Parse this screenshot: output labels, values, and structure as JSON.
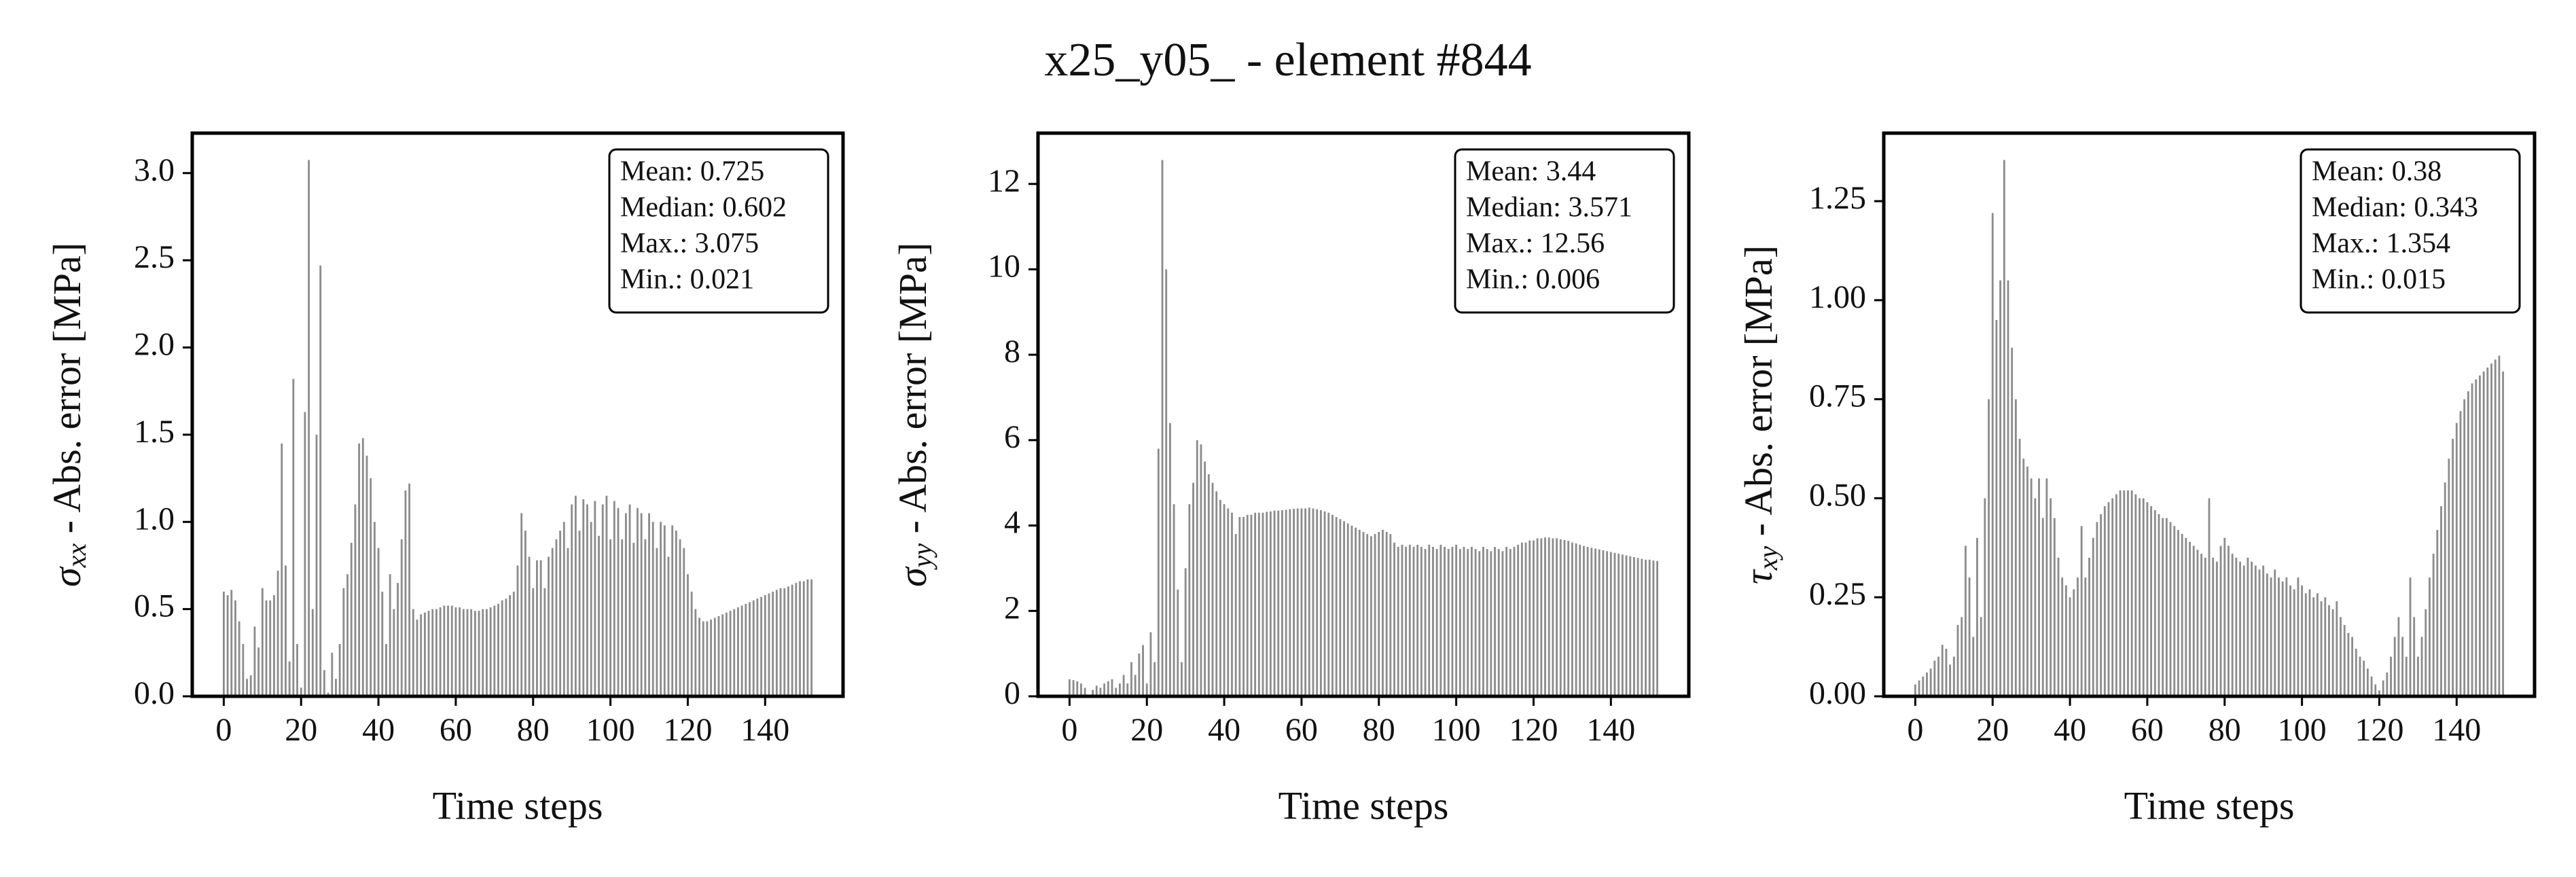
{
  "title": "x25_y05_ - element #844",
  "chart_data": [
    {
      "type": "bar",
      "ylabel_symbol": "σ",
      "ylabel_subscript": "xx",
      "ylabel": " - Abs. error [MPa]",
      "xlabel": "Time steps",
      "stats": [
        "Mean: 0.725",
        "Median: 0.602",
        "Max.: 3.075",
        "Min.: 0.021"
      ],
      "color": "#8c8c8c",
      "xlim": [
        -8.15,
        160.15
      ],
      "xticks": [
        0,
        20,
        40,
        60,
        80,
        100,
        120,
        140
      ],
      "ylim": [
        0,
        3.229
      ],
      "yticks": [
        {
          "value": 0,
          "label": "0.0"
        },
        0.5,
        {
          "value": 1,
          "label": "1.0"
        },
        1.5,
        {
          "value": 2,
          "label": "2.0"
        },
        2.5,
        {
          "value": 3,
          "label": "3.0"
        }
      ],
      "x": [
        0,
        1,
        2,
        3,
        4,
        5,
        6,
        7,
        8,
        9,
        10,
        11,
        12,
        13,
        14,
        15,
        16,
        17,
        18,
        19,
        20,
        21,
        22,
        23,
        24,
        25,
        26,
        27,
        28,
        29,
        30,
        31,
        32,
        33,
        34,
        35,
        36,
        37,
        38,
        39,
        40,
        41,
        42,
        43,
        44,
        45,
        46,
        47,
        48,
        49,
        50,
        51,
        52,
        53,
        54,
        55,
        56,
        57,
        58,
        59,
        60,
        61,
        62,
        63,
        64,
        65,
        66,
        67,
        68,
        69,
        70,
        71,
        72,
        73,
        74,
        75,
        76,
        77,
        78,
        79,
        80,
        81,
        82,
        83,
        84,
        85,
        86,
        87,
        88,
        89,
        90,
        91,
        92,
        93,
        94,
        95,
        96,
        97,
        98,
        99,
        100,
        101,
        102,
        103,
        104,
        105,
        106,
        107,
        108,
        109,
        110,
        111,
        112,
        113,
        114,
        115,
        116,
        117,
        118,
        119,
        120,
        121,
        122,
        123,
        124,
        125,
        126,
        127,
        128,
        129,
        130,
        131,
        132,
        133,
        134,
        135,
        136,
        137,
        138,
        139,
        140,
        141,
        142,
        143,
        144,
        145,
        146,
        147,
        148,
        149,
        150,
        151,
        152
      ],
      "values": [
        0.6,
        0.58,
        0.61,
        0.55,
        0.43,
        0.3,
        0.1,
        0.12,
        0.4,
        0.28,
        0.62,
        0.55,
        0.55,
        0.58,
        0.72,
        1.45,
        0.75,
        0.2,
        1.82,
        0.3,
        0.05,
        1.63,
        3.075,
        0.5,
        1.5,
        2.47,
        0.15,
        0.021,
        0.25,
        0.1,
        0.3,
        0.62,
        0.7,
        0.88,
        1.1,
        1.45,
        1.48,
        1.38,
        1.25,
        1.0,
        0.85,
        0.6,
        0.3,
        0.7,
        0.5,
        0.65,
        0.9,
        1.18,
        1.22,
        0.5,
        0.44,
        0.47,
        0.48,
        0.49,
        0.5,
        0.5,
        0.51,
        0.52,
        0.52,
        0.52,
        0.51,
        0.51,
        0.5,
        0.5,
        0.5,
        0.49,
        0.49,
        0.5,
        0.5,
        0.51,
        0.52,
        0.53,
        0.55,
        0.56,
        0.58,
        0.6,
        0.75,
        1.05,
        0.95,
        0.8,
        0.62,
        0.78,
        0.78,
        0.62,
        0.8,
        0.85,
        0.9,
        0.95,
        1.0,
        0.85,
        1.1,
        1.15,
        0.95,
        1.13,
        1.1,
        1.0,
        1.12,
        0.92,
        1.1,
        1.15,
        0.9,
        1.12,
        1.08,
        0.9,
        1.05,
        1.1,
        0.88,
        1.08,
        1.05,
        0.9,
        1.05,
        1.0,
        0.85,
        1.0,
        0.98,
        0.8,
        0.98,
        0.95,
        0.9,
        0.85,
        0.7,
        0.6,
        0.5,
        0.45,
        0.43,
        0.43,
        0.44,
        0.45,
        0.46,
        0.47,
        0.48,
        0.49,
        0.5,
        0.51,
        0.52,
        0.53,
        0.54,
        0.55,
        0.56,
        0.57,
        0.58,
        0.59,
        0.6,
        0.61,
        0.62,
        0.62,
        0.63,
        0.64,
        0.65,
        0.66,
        0.66,
        0.67,
        0.67
      ]
    },
    {
      "type": "bar",
      "ylabel_symbol": "σ",
      "ylabel_subscript": "yy",
      "ylabel": " - Abs. error [MPa]",
      "xlabel": "Time steps",
      "stats": [
        "Mean: 3.44",
        "Median: 3.571",
        "Max.: 12.56",
        "Min.: 0.006"
      ],
      "color": "#8c8c8c",
      "xlim": [
        -8.15,
        160.15
      ],
      "xticks": [
        0,
        20,
        40,
        60,
        80,
        100,
        120,
        140
      ],
      "ylim": [
        0,
        13.19
      ],
      "yticks": [
        0,
        2,
        4,
        6,
        8,
        10,
        12
      ],
      "x": [
        0,
        1,
        2,
        3,
        4,
        5,
        6,
        7,
        8,
        9,
        10,
        11,
        12,
        13,
        14,
        15,
        16,
        17,
        18,
        19,
        20,
        21,
        22,
        23,
        24,
        25,
        26,
        27,
        28,
        29,
        30,
        31,
        32,
        33,
        34,
        35,
        36,
        37,
        38,
        39,
        40,
        41,
        42,
        43,
        44,
        45,
        46,
        47,
        48,
        49,
        50,
        51,
        52,
        53,
        54,
        55,
        56,
        57,
        58,
        59,
        60,
        61,
        62,
        63,
        64,
        65,
        66,
        67,
        68,
        69,
        70,
        71,
        72,
        73,
        74,
        75,
        76,
        77,
        78,
        79,
        80,
        81,
        82,
        83,
        84,
        85,
        86,
        87,
        88,
        89,
        90,
        91,
        92,
        93,
        94,
        95,
        96,
        97,
        98,
        99,
        100,
        101,
        102,
        103,
        104,
        105,
        106,
        107,
        108,
        109,
        110,
        111,
        112,
        113,
        114,
        115,
        116,
        117,
        118,
        119,
        120,
        121,
        122,
        123,
        124,
        125,
        126,
        127,
        128,
        129,
        130,
        131,
        132,
        133,
        134,
        135,
        136,
        137,
        138,
        139,
        140,
        141,
        142,
        143,
        144,
        145,
        146,
        147,
        148,
        149,
        150,
        151,
        152
      ],
      "values": [
        0.4,
        0.38,
        0.35,
        0.3,
        0.2,
        0.006,
        0.15,
        0.25,
        0.2,
        0.3,
        0.35,
        0.4,
        0.2,
        0.3,
        0.5,
        0.3,
        0.8,
        0.5,
        1.0,
        1.2,
        0.3,
        1.5,
        0.8,
        5.8,
        12.56,
        10.0,
        6.4,
        4.5,
        2.5,
        0.8,
        3.0,
        4.5,
        5.0,
        6.0,
        5.9,
        5.5,
        5.2,
        5.0,
        4.8,
        4.6,
        4.5,
        4.4,
        4.3,
        3.8,
        4.2,
        4.2,
        4.25,
        4.25,
        4.3,
        4.3,
        4.3,
        4.32,
        4.33,
        4.35,
        4.35,
        4.36,
        4.37,
        4.38,
        4.39,
        4.4,
        4.4,
        4.4,
        4.42,
        4.4,
        4.38,
        4.36,
        4.33,
        4.3,
        4.25,
        4.2,
        4.15,
        4.1,
        4.05,
        4.0,
        3.95,
        3.9,
        3.85,
        3.8,
        3.75,
        3.8,
        3.85,
        3.9,
        3.85,
        3.8,
        3.6,
        3.5,
        3.55,
        3.5,
        3.55,
        3.5,
        3.55,
        3.5,
        3.45,
        3.55,
        3.5,
        3.45,
        3.55,
        3.5,
        3.45,
        3.5,
        3.55,
        3.45,
        3.5,
        3.45,
        3.5,
        3.45,
        3.4,
        3.5,
        3.45,
        3.4,
        3.5,
        3.45,
        3.4,
        3.5,
        3.45,
        3.5,
        3.55,
        3.6,
        3.6,
        3.65,
        3.65,
        3.7,
        3.7,
        3.72,
        3.72,
        3.7,
        3.7,
        3.68,
        3.66,
        3.64,
        3.6,
        3.58,
        3.55,
        3.52,
        3.5,
        3.48,
        3.46,
        3.44,
        3.42,
        3.4,
        3.38,
        3.36,
        3.34,
        3.32,
        3.3,
        3.28,
        3.26,
        3.24,
        3.22,
        3.2,
        3.2,
        3.18,
        3.17
      ]
    },
    {
      "type": "bar",
      "ylabel_symbol": "τ",
      "ylabel_subscript": "xy",
      "ylabel": " - Abs. error [MPa]",
      "xlabel": "Time steps",
      "stats": [
        "Mean: 0.38",
        "Median: 0.343",
        "Max.: 1.354",
        "Min.: 0.015"
      ],
      "color": "#8c8c8c",
      "xlim": [
        -8.15,
        160.15
      ],
      "xticks": [
        0,
        20,
        40,
        60,
        80,
        100,
        120,
        140
      ],
      "ylim": [
        0,
        1.4217
      ],
      "yticks": [
        {
          "value": 0,
          "label": "0.00"
        },
        0.25,
        {
          "value": 0.5,
          "label": "0.50"
        },
        0.75,
        {
          "value": 1,
          "label": "1.00"
        },
        1.25
      ],
      "x": [
        0,
        1,
        2,
        3,
        4,
        5,
        6,
        7,
        8,
        9,
        10,
        11,
        12,
        13,
        14,
        15,
        16,
        17,
        18,
        19,
        20,
        21,
        22,
        23,
        24,
        25,
        26,
        27,
        28,
        29,
        30,
        31,
        32,
        33,
        34,
        35,
        36,
        37,
        38,
        39,
        40,
        41,
        42,
        43,
        44,
        45,
        46,
        47,
        48,
        49,
        50,
        51,
        52,
        53,
        54,
        55,
        56,
        57,
        58,
        59,
        60,
        61,
        62,
        63,
        64,
        65,
        66,
        67,
        68,
        69,
        70,
        71,
        72,
        73,
        74,
        75,
        76,
        77,
        78,
        79,
        80,
        81,
        82,
        83,
        84,
        85,
        86,
        87,
        88,
        89,
        90,
        91,
        92,
        93,
        94,
        95,
        96,
        97,
        98,
        99,
        100,
        101,
        102,
        103,
        104,
        105,
        106,
        107,
        108,
        109,
        110,
        111,
        112,
        113,
        114,
        115,
        116,
        117,
        118,
        119,
        120,
        121,
        122,
        123,
        124,
        125,
        126,
        127,
        128,
        129,
        130,
        131,
        132,
        133,
        134,
        135,
        136,
        137,
        138,
        139,
        140,
        141,
        142,
        143,
        144,
        145,
        146,
        147,
        148,
        149,
        150,
        151,
        152
      ],
      "values": [
        0.03,
        0.04,
        0.05,
        0.06,
        0.07,
        0.09,
        0.1,
        0.13,
        0.12,
        0.08,
        0.1,
        0.18,
        0.2,
        0.38,
        0.3,
        0.15,
        0.4,
        0.2,
        0.5,
        0.75,
        1.22,
        0.95,
        1.05,
        1.354,
        1.05,
        0.88,
        0.75,
        0.65,
        0.6,
        0.58,
        0.55,
        0.5,
        0.55,
        0.45,
        0.55,
        0.5,
        0.45,
        0.35,
        0.3,
        0.28,
        0.25,
        0.27,
        0.3,
        0.43,
        0.3,
        0.35,
        0.4,
        0.44,
        0.46,
        0.48,
        0.49,
        0.5,
        0.51,
        0.52,
        0.52,
        0.52,
        0.52,
        0.51,
        0.5,
        0.5,
        0.49,
        0.48,
        0.47,
        0.46,
        0.45,
        0.45,
        0.44,
        0.43,
        0.42,
        0.41,
        0.4,
        0.39,
        0.38,
        0.37,
        0.36,
        0.35,
        0.5,
        0.35,
        0.34,
        0.38,
        0.4,
        0.38,
        0.36,
        0.35,
        0.34,
        0.33,
        0.35,
        0.34,
        0.33,
        0.32,
        0.33,
        0.31,
        0.3,
        0.32,
        0.3,
        0.29,
        0.3,
        0.28,
        0.27,
        0.3,
        0.28,
        0.26,
        0.27,
        0.25,
        0.26,
        0.24,
        0.25,
        0.23,
        0.22,
        0.24,
        0.2,
        0.18,
        0.16,
        0.15,
        0.12,
        0.1,
        0.09,
        0.07,
        0.05,
        0.03,
        0.015,
        0.04,
        0.06,
        0.1,
        0.15,
        0.2,
        0.15,
        0.1,
        0.3,
        0.2,
        0.1,
        0.15,
        0.22,
        0.3,
        0.36,
        0.42,
        0.48,
        0.54,
        0.6,
        0.65,
        0.69,
        0.72,
        0.75,
        0.77,
        0.79,
        0.8,
        0.81,
        0.82,
        0.83,
        0.84,
        0.85,
        0.86,
        0.82
      ]
    }
  ]
}
